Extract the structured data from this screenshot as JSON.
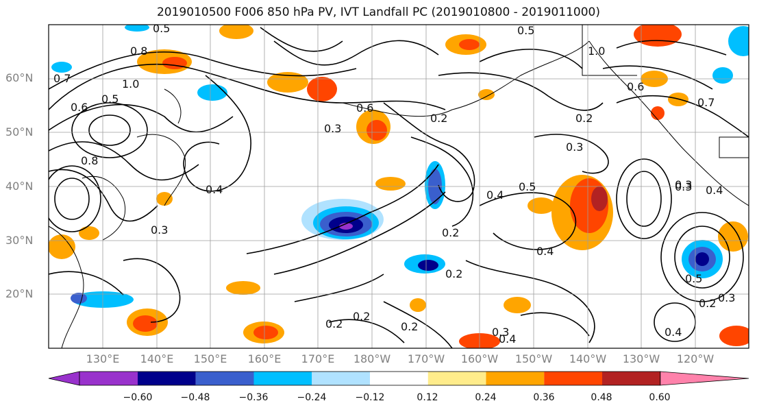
{
  "title": "2019010500 F006 850 hPa PV, IVT Landfall PC (2019010800 - 2019011000)",
  "lat_labels": [
    "60°N",
    "50°N",
    "40°N",
    "30°N",
    "20°N"
  ],
  "lon_labels": [
    "130°E",
    "140°E",
    "150°E",
    "160°E",
    "170°E",
    "180°W",
    "170°W",
    "160°W",
    "150°W",
    "140°W",
    "130°W",
    "120°W"
  ],
  "contour_labels": [
    "0.5",
    "0.8",
    "0.7",
    "1.0",
    "0.6",
    "0.5",
    "0.3",
    "0.6",
    "0.2",
    "0.5",
    "0.2",
    "1.0",
    "0.7",
    "0.3",
    "0.4",
    "0.8",
    "0.3",
    "0.5",
    "0.4",
    "0.4",
    "0.2",
    "0.2",
    "0.4",
    "0.3",
    "0.4",
    "0.2",
    "0.2",
    "0.2",
    "0.3",
    "0.4",
    "0.2",
    "0.3",
    "0.6",
    "0.5",
    "0.3"
  ],
  "colorbar": {
    "colors": [
      "#9932cc",
      "#00008b",
      "#3a5fcd",
      "#00bfff",
      "#b0e2ff",
      "#ffffff",
      "#ffec8b",
      "#ffa500",
      "#ff4500",
      "#b22222",
      "#ff82ab"
    ],
    "ticks": [
      "−0.60",
      "−0.48",
      "−0.36",
      "−0.24",
      "−0.12",
      "0.12",
      "0.24",
      "0.36",
      "0.48",
      "0.60"
    ]
  }
}
